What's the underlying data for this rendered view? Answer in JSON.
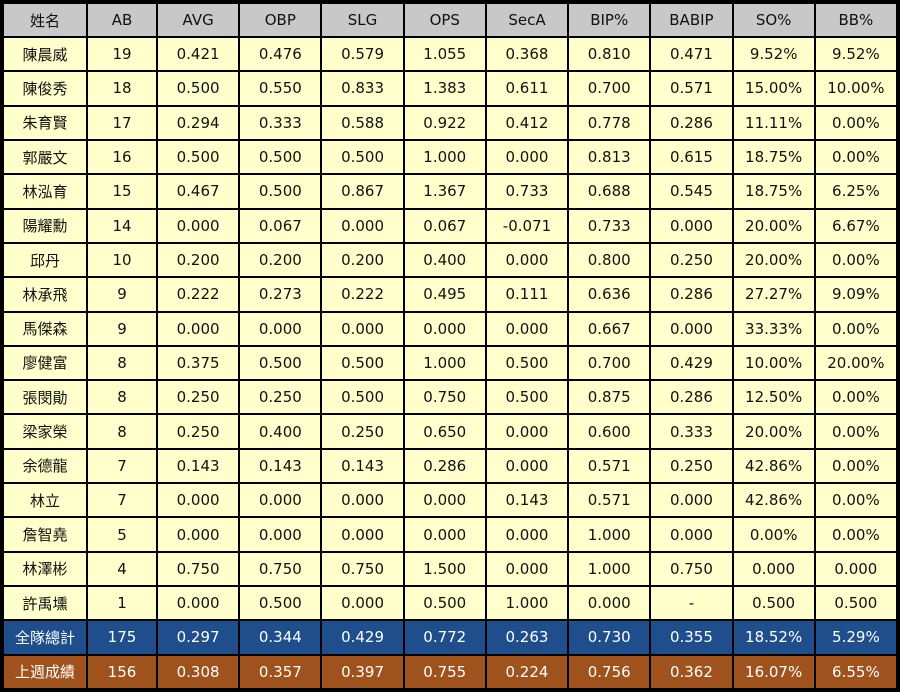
{
  "table": {
    "header": [
      "姓名",
      "AB",
      "AVG",
      "OBP",
      "SLG",
      "OPS",
      "SecA",
      "BIP%",
      "BABIP",
      "SO%",
      "BB%"
    ],
    "rows": [
      [
        "陳晨威",
        "19",
        "0.421",
        "0.476",
        "0.579",
        "1.055",
        "0.368",
        "0.810",
        "0.471",
        "9.52%",
        "9.52%"
      ],
      [
        "陳俊秀",
        "18",
        "0.500",
        "0.550",
        "0.833",
        "1.383",
        "0.611",
        "0.700",
        "0.571",
        "15.00%",
        "10.00%"
      ],
      [
        "朱育賢",
        "17",
        "0.294",
        "0.333",
        "0.588",
        "0.922",
        "0.412",
        "0.778",
        "0.286",
        "11.11%",
        "0.00%"
      ],
      [
        "郭嚴文",
        "16",
        "0.500",
        "0.500",
        "0.500",
        "1.000",
        "0.000",
        "0.813",
        "0.615",
        "18.75%",
        "0.00%"
      ],
      [
        "林泓育",
        "15",
        "0.467",
        "0.500",
        "0.867",
        "1.367",
        "0.733",
        "0.688",
        "0.545",
        "18.75%",
        "6.25%"
      ],
      [
        "陽耀勳",
        "14",
        "0.000",
        "0.067",
        "0.000",
        "0.067",
        "-0.071",
        "0.733",
        "0.000",
        "20.00%",
        "6.67%"
      ],
      [
        "邱丹",
        "10",
        "0.200",
        "0.200",
        "0.200",
        "0.400",
        "0.000",
        "0.800",
        "0.250",
        "20.00%",
        "0.00%"
      ],
      [
        "林承飛",
        "9",
        "0.222",
        "0.273",
        "0.222",
        "0.495",
        "0.111",
        "0.636",
        "0.286",
        "27.27%",
        "9.09%"
      ],
      [
        "馬傑森",
        "9",
        "0.000",
        "0.000",
        "0.000",
        "0.000",
        "0.000",
        "0.667",
        "0.000",
        "33.33%",
        "0.00%"
      ],
      [
        "廖健富",
        "8",
        "0.375",
        "0.500",
        "0.500",
        "1.000",
        "0.500",
        "0.700",
        "0.429",
        "10.00%",
        "20.00%"
      ],
      [
        "張閔勛",
        "8",
        "0.250",
        "0.250",
        "0.500",
        "0.750",
        "0.500",
        "0.875",
        "0.286",
        "12.50%",
        "0.00%"
      ],
      [
        "梁家榮",
        "8",
        "0.250",
        "0.400",
        "0.250",
        "0.650",
        "0.000",
        "0.600",
        "0.333",
        "20.00%",
        "0.00%"
      ],
      [
        "余德龍",
        "7",
        "0.143",
        "0.143",
        "0.143",
        "0.286",
        "0.000",
        "0.571",
        "0.250",
        "42.86%",
        "0.00%"
      ],
      [
        "林立",
        "7",
        "0.000",
        "0.000",
        "0.000",
        "0.000",
        "0.143",
        "0.571",
        "0.000",
        "42.86%",
        "0.00%"
      ],
      [
        "詹智堯",
        "5",
        "0.000",
        "0.000",
        "0.000",
        "0.000",
        "0.000",
        "1.000",
        "0.000",
        "0.00%",
        "0.00%"
      ],
      [
        "林澤彬",
        "4",
        "0.750",
        "0.750",
        "0.750",
        "1.500",
        "0.000",
        "1.000",
        "0.750",
        "0.000",
        "0.000"
      ],
      [
        "許禹壎",
        "1",
        "0.000",
        "0.500",
        "0.000",
        "0.500",
        "1.000",
        "0.000",
        "-",
        "0.500",
        "0.500"
      ]
    ],
    "team_total": [
      "全隊總計",
      "175",
      "0.297",
      "0.344",
      "0.429",
      "0.772",
      "0.263",
      "0.730",
      "0.355",
      "18.52%",
      "5.29%"
    ],
    "last_week": [
      "上週成績",
      "156",
      "0.308",
      "0.357",
      "0.397",
      "0.755",
      "0.224",
      "0.756",
      "0.362",
      "16.07%",
      "6.55%"
    ]
  }
}
